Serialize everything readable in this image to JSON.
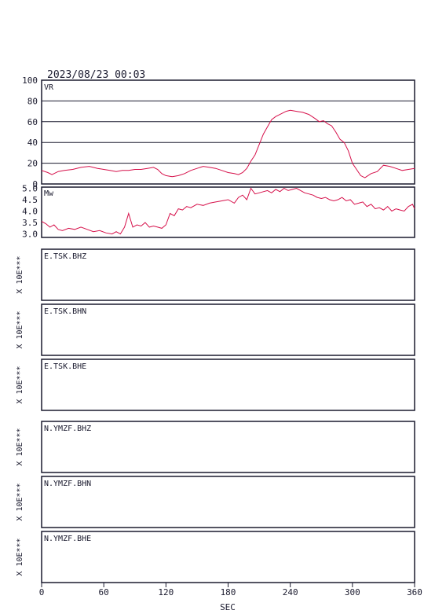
{
  "header": {
    "datetime": "2023/08/23 00:03"
  },
  "colors": {
    "series": "#d6104a",
    "frame": "#1a1a2e",
    "background": "#ffffff"
  },
  "chart_data": [
    {
      "type": "line",
      "panel_label": "VR",
      "ylim": [
        0,
        100
      ],
      "yticks": [
        "100",
        "80",
        "60",
        "40",
        "20",
        "0"
      ],
      "grid": true,
      "x": [
        0,
        6,
        10,
        16,
        22,
        30,
        38,
        46,
        54,
        60,
        66,
        72,
        78,
        84,
        90,
        96,
        102,
        108,
        112,
        116,
        120,
        126,
        132,
        138,
        144,
        150,
        156,
        162,
        168,
        174,
        180,
        186,
        190,
        194,
        198,
        202,
        206,
        210,
        214,
        218,
        222,
        226,
        230,
        236,
        240,
        246,
        252,
        258,
        264,
        268,
        272,
        276,
        280,
        284,
        288,
        292,
        296,
        300,
        304,
        308,
        312,
        318,
        324,
        330,
        336,
        342,
        348,
        354,
        360
      ],
      "values": [
        13,
        11,
        9,
        12,
        13,
        14,
        16,
        17,
        15,
        14,
        13,
        12,
        13,
        13,
        14,
        14,
        15,
        16,
        14,
        10,
        8,
        7,
        8,
        10,
        13,
        15,
        17,
        16,
        15,
        13,
        11,
        10,
        9,
        11,
        15,
        22,
        28,
        38,
        48,
        55,
        62,
        65,
        67,
        70,
        71,
        70,
        69,
        67,
        63,
        60,
        61,
        58,
        56,
        50,
        43,
        40,
        32,
        20,
        14,
        8,
        6,
        10,
        12,
        18,
        17,
        15,
        13,
        14,
        15
      ]
    },
    {
      "type": "line",
      "panel_label": "Mw",
      "ylim": [
        2.85,
        5.05
      ],
      "yticks": [
        "5.0",
        "4.5",
        "4.0",
        "3.5",
        "3.0"
      ],
      "grid": false,
      "x": [
        0,
        4,
        8,
        12,
        16,
        20,
        26,
        32,
        38,
        44,
        50,
        56,
        62,
        68,
        72,
        76,
        80,
        84,
        88,
        92,
        96,
        100,
        104,
        108,
        112,
        116,
        120,
        124,
        128,
        132,
        136,
        140,
        144,
        150,
        156,
        162,
        168,
        174,
        180,
        186,
        190,
        194,
        198,
        202,
        206,
        210,
        214,
        218,
        222,
        226,
        230,
        234,
        238,
        242,
        246,
        250,
        254,
        258,
        262,
        266,
        270,
        274,
        278,
        282,
        286,
        290,
        294,
        298,
        302,
        306,
        310,
        314,
        318,
        322,
        326,
        330,
        334,
        338,
        342,
        346,
        350,
        354,
        358,
        360
      ],
      "values": [
        3.55,
        3.45,
        3.3,
        3.4,
        3.2,
        3.15,
        3.25,
        3.2,
        3.3,
        3.2,
        3.1,
        3.15,
        3.05,
        3.0,
        3.1,
        3.0,
        3.3,
        3.9,
        3.3,
        3.4,
        3.35,
        3.5,
        3.3,
        3.35,
        3.3,
        3.25,
        3.4,
        3.9,
        3.8,
        4.1,
        4.05,
        4.2,
        4.15,
        4.3,
        4.25,
        4.35,
        4.4,
        4.45,
        4.5,
        4.35,
        4.6,
        4.7,
        4.5,
        5.0,
        4.75,
        4.8,
        4.85,
        4.9,
        4.8,
        4.95,
        4.85,
        5.0,
        4.9,
        4.95,
        5.0,
        4.9,
        4.8,
        4.75,
        4.7,
        4.6,
        4.55,
        4.6,
        4.5,
        4.45,
        4.5,
        4.6,
        4.45,
        4.5,
        4.3,
        4.35,
        4.4,
        4.2,
        4.3,
        4.1,
        4.15,
        4.05,
        4.2,
        4.0,
        4.1,
        4.05,
        4.0,
        4.2,
        4.3,
        4.1
      ]
    }
  ],
  "stations": [
    {
      "label": "E.TSK.BHZ",
      "scale_label": "X 10E***"
    },
    {
      "label": "E.TSK.BHN",
      "scale_label": "X 10E***"
    },
    {
      "label": "E.TSK.BHE",
      "scale_label": "X 10E***"
    },
    {
      "label": "N.YMZF.BHZ",
      "scale_label": "X 10E***"
    },
    {
      "label": "N.YMZF.BHN",
      "scale_label": "X 10E***"
    },
    {
      "label": "N.YMZF.BHE",
      "scale_label": "X 10E***"
    }
  ],
  "x_axis": {
    "label": "SEC",
    "xlim": [
      0,
      360
    ],
    "ticks": [
      "0",
      "60",
      "120",
      "180",
      "240",
      "300",
      "360"
    ]
  }
}
